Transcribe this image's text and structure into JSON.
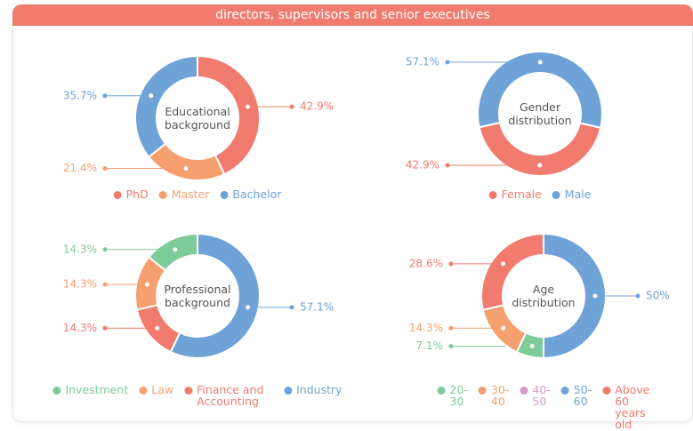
{
  "header": {
    "title": "directors, supervisors and senior executives"
  },
  "chart_data": [
    {
      "type": "pie",
      "center_label": "Educational background",
      "categories": [
        "PhD",
        "Master",
        "Bachelor"
      ],
      "values": [
        42.9,
        21.4,
        35.7
      ],
      "value_labels": [
        "42.9%",
        "21.4%",
        "35.7%"
      ],
      "colors": [
        "#f07b6e",
        "#f5a06e",
        "#6fa3d8"
      ]
    },
    {
      "type": "pie",
      "center_label": "Gender distribution",
      "categories": [
        "Female",
        "Male"
      ],
      "values": [
        42.9,
        57.1
      ],
      "value_labels": [
        "42.9%",
        "57.1%"
      ],
      "colors": [
        "#f07b6e",
        "#6fa3d8"
      ]
    },
    {
      "type": "pie",
      "center_label": "Professional background",
      "categories": [
        "Investment",
        "Law",
        "Finance and Accounting",
        "Industry"
      ],
      "values": [
        14.3,
        14.3,
        14.3,
        57.1
      ],
      "value_labels": [
        "14.3%",
        "14.3%",
        "14.3%",
        "57.1%"
      ],
      "colors": [
        "#7ecb9a",
        "#f5a06e",
        "#f07b6e",
        "#6fa3d8"
      ]
    },
    {
      "type": "pie",
      "center_label": "Age distribution",
      "categories": [
        "20-30",
        "30-40",
        "40-50",
        "50-60",
        "Above 60 years old"
      ],
      "values": [
        7.1,
        14.3,
        0,
        50,
        28.6
      ],
      "value_labels": [
        "7.1%",
        "14.3%",
        null,
        "50%",
        "28.6%"
      ],
      "colors": [
        "#7ecb9a",
        "#f5a06e",
        "#d899c8",
        "#6fa3d8",
        "#f07b6e"
      ]
    }
  ]
}
